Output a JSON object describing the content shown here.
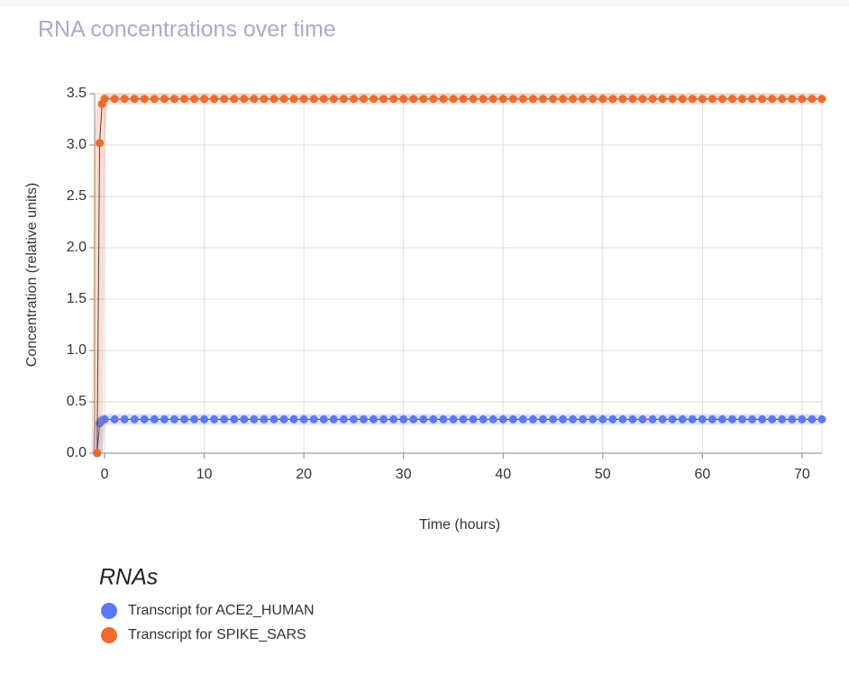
{
  "chart_data": {
    "type": "line",
    "title": "RNA concentrations over time",
    "x_label": "Time (hours)",
    "y_label": "Concentration (relative units)",
    "x": [
      -0.75,
      -0.5,
      -0.25,
      0,
      1,
      2,
      3,
      4,
      5,
      6,
      7,
      8,
      9,
      10,
      11,
      12,
      13,
      14,
      15,
      16,
      17,
      18,
      19,
      20,
      21,
      22,
      23,
      24,
      25,
      26,
      27,
      28,
      29,
      30,
      31,
      32,
      33,
      34,
      35,
      36,
      37,
      38,
      39,
      40,
      41,
      42,
      43,
      44,
      45,
      46,
      47,
      48,
      49,
      50,
      51,
      52,
      53,
      54,
      55,
      56,
      57,
      58,
      59,
      60,
      61,
      62,
      63,
      64,
      65,
      66,
      67,
      68,
      69,
      70,
      71,
      72
    ],
    "series": [
      {
        "name": "Transcript for ACE2_HUMAN",
        "color": "#5b79f0",
        "values": [
          0,
          0.29,
          0.32,
          0.33,
          0.33,
          0.33,
          0.33,
          0.33,
          0.33,
          0.33,
          0.33,
          0.33,
          0.33,
          0.33,
          0.33,
          0.33,
          0.33,
          0.33,
          0.33,
          0.33,
          0.33,
          0.33,
          0.33,
          0.33,
          0.33,
          0.33,
          0.33,
          0.33,
          0.33,
          0.33,
          0.33,
          0.33,
          0.33,
          0.33,
          0.33,
          0.33,
          0.33,
          0.33,
          0.33,
          0.33,
          0.33,
          0.33,
          0.33,
          0.33,
          0.33,
          0.33,
          0.33,
          0.33,
          0.33,
          0.33,
          0.33,
          0.33,
          0.33,
          0.33,
          0.33,
          0.33,
          0.33,
          0.33,
          0.33,
          0.33,
          0.33,
          0.33,
          0.33,
          0.33,
          0.33,
          0.33,
          0.33,
          0.33,
          0.33,
          0.33,
          0.33,
          0.33,
          0.33,
          0.33,
          0.33,
          0.33
        ]
      },
      {
        "name": "Transcript for SPIKE_SARS",
        "color": "#ee6a2d",
        "values": [
          0,
          3.02,
          3.4,
          3.45,
          3.45,
          3.45,
          3.45,
          3.45,
          3.45,
          3.45,
          3.45,
          3.45,
          3.45,
          3.45,
          3.45,
          3.45,
          3.45,
          3.45,
          3.45,
          3.45,
          3.45,
          3.45,
          3.45,
          3.45,
          3.45,
          3.45,
          3.45,
          3.45,
          3.45,
          3.45,
          3.45,
          3.45,
          3.45,
          3.45,
          3.45,
          3.45,
          3.45,
          3.45,
          3.45,
          3.45,
          3.45,
          3.45,
          3.45,
          3.45,
          3.45,
          3.45,
          3.45,
          3.45,
          3.45,
          3.45,
          3.45,
          3.45,
          3.45,
          3.45,
          3.45,
          3.45,
          3.45,
          3.45,
          3.45,
          3.45,
          3.45,
          3.45,
          3.45,
          3.45,
          3.45,
          3.45,
          3.45,
          3.45,
          3.45,
          3.45,
          3.45,
          3.45,
          3.45,
          3.45,
          3.45,
          3.45
        ]
      }
    ],
    "xlim": [
      -1,
      72
    ],
    "xticks": [
      0,
      10,
      20,
      30,
      40,
      50,
      60,
      70
    ],
    "ylim": [
      0,
      3.5
    ],
    "yticks": [
      {
        "value": 0,
        "label": "0.0"
      },
      0.5,
      {
        "value": 1,
        "label": "1.0"
      },
      1.5,
      {
        "value": 2,
        "label": "2.0"
      },
      2.5,
      {
        "value": 3,
        "label": "3.0"
      },
      3.5
    ],
    "grid": true,
    "legend_title": "RNAs"
  }
}
